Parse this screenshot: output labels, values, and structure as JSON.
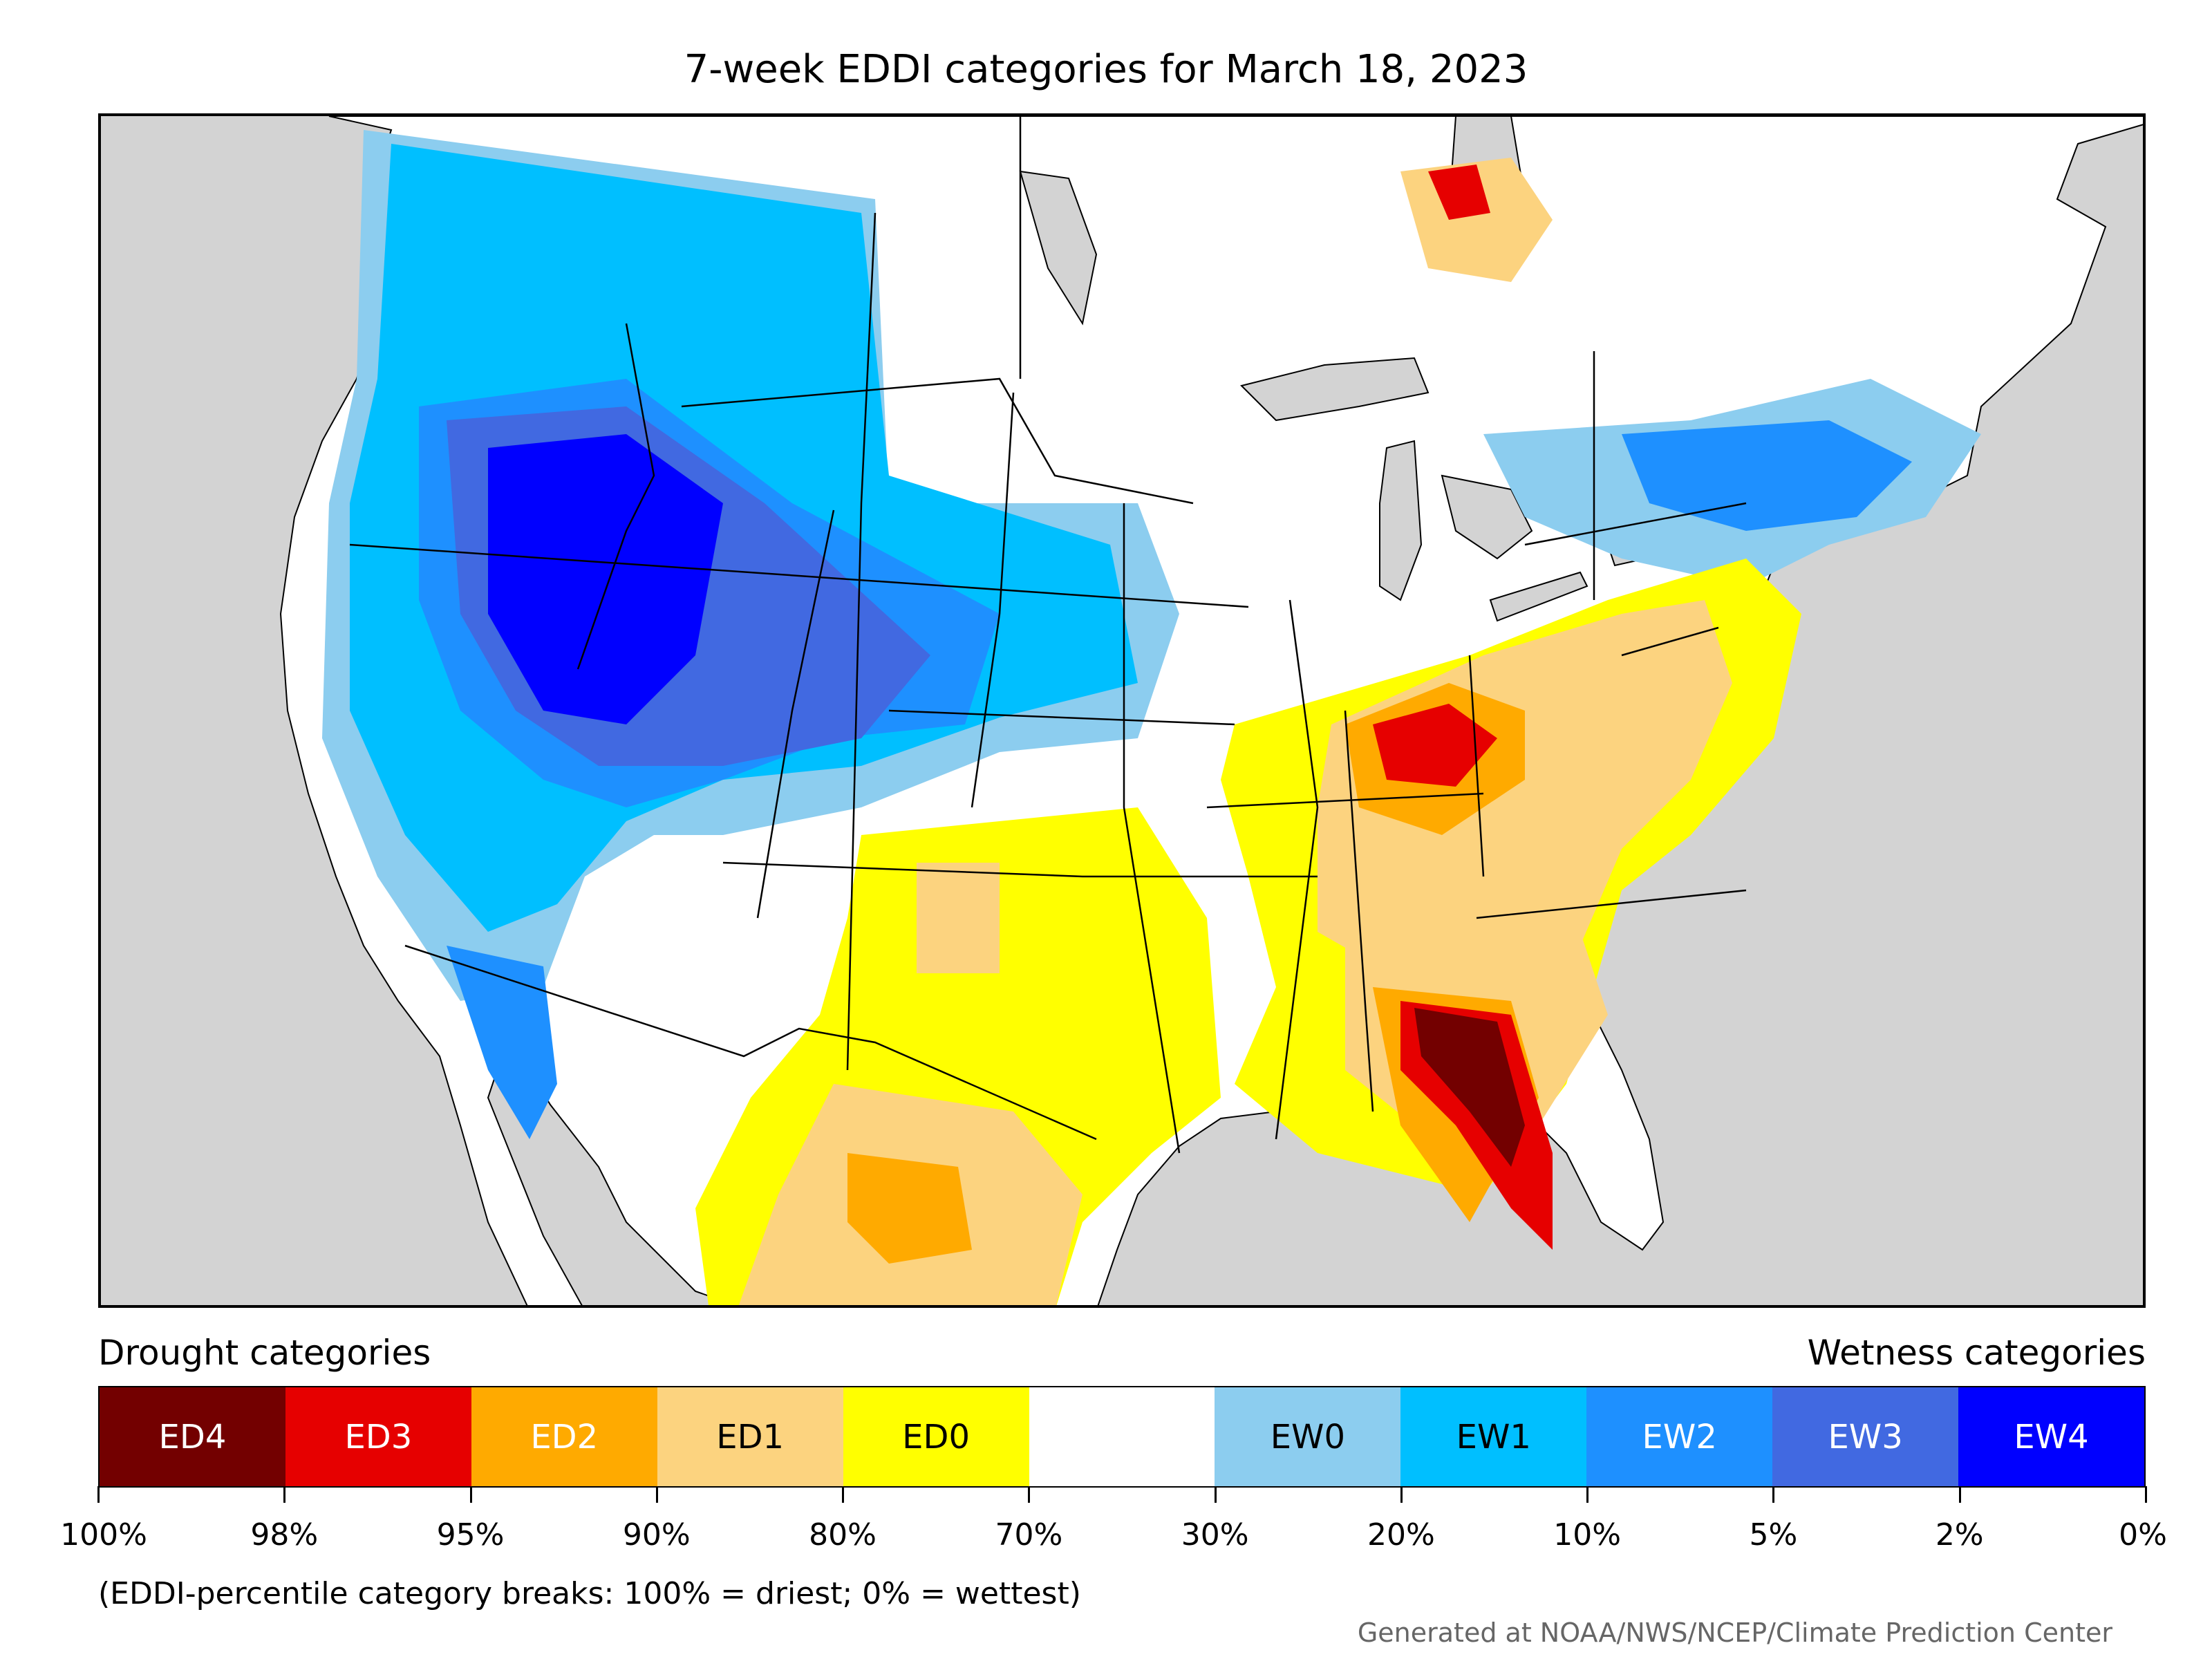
{
  "title": "7-week EDDI categories for March 18, 2023",
  "legend": {
    "drought_heading": "Drought categories",
    "wetness_heading": "Wetness categories",
    "categories": [
      {
        "label": "ED4",
        "color": "#730000",
        "text_color": "#ffffff"
      },
      {
        "label": "ED3",
        "color": "#e60000",
        "text_color": "#ffffff"
      },
      {
        "label": "ED2",
        "color": "#ffaa00",
        "text_color": "#ffffff"
      },
      {
        "label": "ED1",
        "color": "#fcd37f",
        "text_color": "#000000"
      },
      {
        "label": "ED0",
        "color": "#ffff00",
        "text_color": "#000000"
      },
      {
        "label": "",
        "color": "#ffffff",
        "text_color": "#000000"
      },
      {
        "label": "EW0",
        "color": "#8ccdef",
        "text_color": "#000000"
      },
      {
        "label": "EW1",
        "color": "#00bfff",
        "text_color": "#000000"
      },
      {
        "label": "EW2",
        "color": "#1e90ff",
        "text_color": "#ffffff"
      },
      {
        "label": "EW3",
        "color": "#4169e1",
        "text_color": "#ffffff"
      },
      {
        "label": "EW4",
        "color": "#0000ff",
        "text_color": "#ffffff"
      }
    ],
    "tick_labels": [
      "100%",
      "98%",
      "95%",
      "90%",
      "80%",
      "70%",
      "30%",
      "20%",
      "10%",
      "5%",
      "2%",
      "0%"
    ]
  },
  "footnote": "(EDDI-percentile category breaks: 100% = driest; 0% = wettest)",
  "credit": "Generated at NOAA/NWS/NCEP/Climate Prediction Center",
  "map_colors": {
    "land": "#ffffff",
    "water": "#d3d3d3",
    "borders": "#000000"
  }
}
